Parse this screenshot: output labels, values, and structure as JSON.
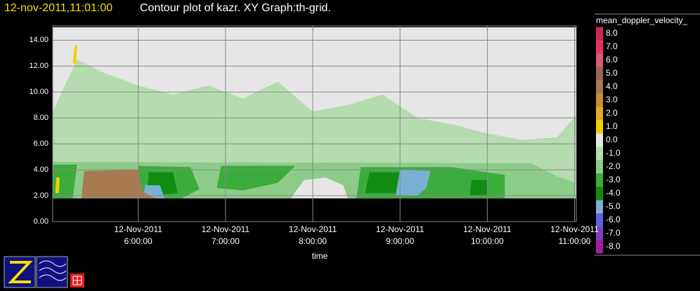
{
  "chart_data": {
    "type": "contour",
    "title_time": "12-nov-2011,11:01:00",
    "title": "Contour plot of kazr.  XY Graph:th-grid.",
    "xlabel": "time",
    "colorbar_label": "mean_doppler_velocity_",
    "xlim": [
      5.02,
      11.02
    ],
    "ylim": [
      0,
      15.1
    ],
    "xticks": [
      {
        "value": 6,
        "label": "12-Nov-2011\n6:00:00"
      },
      {
        "value": 7,
        "label": "12-Nov-2011\n7:00:00"
      },
      {
        "value": 8,
        "label": "12-Nov-2011\n8:00:00"
      },
      {
        "value": 9,
        "label": "12-Nov-2011\n9:00:00"
      },
      {
        "value": 10,
        "label": "12-Nov-2011\n10:00:00"
      },
      {
        "value": 11,
        "label": "12-Nov-2011\n11:00:00"
      }
    ],
    "yticks": [
      {
        "value": 0,
        "label": "0.00"
      },
      {
        "value": 2,
        "label": "2.00"
      },
      {
        "value": 4,
        "label": "4.00"
      },
      {
        "value": 6,
        "label": "6.00"
      },
      {
        "value": 8,
        "label": "8.00"
      },
      {
        "value": 10,
        "label": "10.00"
      },
      {
        "value": 12,
        "label": "12.00"
      },
      {
        "value": 14,
        "label": "14.00"
      }
    ],
    "grid": true,
    "levels": [
      {
        "value": 8,
        "label": "8.0",
        "color": "#c8284f"
      },
      {
        "value": 7,
        "label": "7.0",
        "color": "#e83068"
      },
      {
        "value": 6,
        "label": "6.0",
        "color": "#d85a7a"
      },
      {
        "value": 5,
        "label": "5.0",
        "color": "#9c6450"
      },
      {
        "value": 4,
        "label": "4.0",
        "color": "#a87a50"
      },
      {
        "value": 3,
        "label": "3.0",
        "color": "#cc8c30"
      },
      {
        "value": 2,
        "label": "2.0",
        "color": "#e8a820"
      },
      {
        "value": 1,
        "label": "1.0",
        "color": "#f0d000"
      },
      {
        "value": 0,
        "label": "0.0",
        "color": "#e6e6e6"
      },
      {
        "value": -1,
        "label": "-1.0",
        "color": "#b4dcae"
      },
      {
        "value": -2,
        "label": "-2.0",
        "color": "#8ccc88"
      },
      {
        "value": -3,
        "label": "-3.0",
        "color": "#3cac3c"
      },
      {
        "value": -4,
        "label": "-4.0",
        "color": "#108c10"
      },
      {
        "value": -5,
        "label": "-5.0",
        "color": "#7ab0d4"
      },
      {
        "value": -6,
        "label": "-6.0",
        "color": "#6060e0"
      },
      {
        "value": -7,
        "label": "-7.0",
        "color": "#8040c0"
      },
      {
        "value": -8,
        "label": "-8.0",
        "color": "#a020a0"
      }
    ],
    "regions": [
      {
        "value": 0,
        "x": [
          5.02,
          11.02,
          11.02,
          5.02
        ],
        "y": [
          1.8,
          1.8,
          15,
          15
        ]
      },
      {
        "value": -1,
        "x": [
          5.02,
          5.3,
          5.6,
          6.0,
          6.4,
          6.8,
          7.2,
          7.6,
          8.0,
          8.4,
          8.8,
          9.2,
          9.6,
          10.0,
          10.4,
          10.8,
          11.02,
          11.02,
          5.02
        ],
        "y": [
          8.5,
          12.5,
          11.5,
          10.5,
          9.8,
          10.5,
          9.5,
          10.8,
          8.5,
          9,
          9.8,
          8,
          7.5,
          6.8,
          6.3,
          6.5,
          8.2,
          1.8,
          1.8
        ]
      },
      {
        "value": -2,
        "x": [
          5.02,
          5.02,
          10.5,
          10.8,
          11.0,
          11.0
        ],
        "y": [
          1.8,
          4.6,
          4.5,
          3.5,
          3.0,
          1.8
        ]
      },
      {
        "value": 0,
        "x": [
          7.75,
          7.9,
          8.15,
          8.35,
          8.4
        ],
        "y": [
          1.8,
          3.2,
          3.4,
          2.8,
          1.8
        ]
      },
      {
        "value": -3,
        "x": [
          5.02,
          5.02,
          5.3,
          5.25
        ],
        "y": [
          1.8,
          4.4,
          4.4,
          1.8
        ]
      },
      {
        "value": -3,
        "x": [
          6.0,
          6.0,
          6.6,
          6.7,
          6.5
        ],
        "y": [
          1.8,
          4.3,
          4.2,
          2.5,
          1.8
        ]
      },
      {
        "value": -3,
        "x": [
          6.9,
          6.95,
          7.8,
          7.6,
          7.2
        ],
        "y": [
          2.6,
          4.3,
          4.3,
          3.0,
          2.4
        ]
      },
      {
        "value": -3,
        "x": [
          8.5,
          8.55,
          9.6,
          10.2,
          10.2,
          9.5
        ],
        "y": [
          1.8,
          4.2,
          4.2,
          3.6,
          1.8,
          1.8
        ]
      },
      {
        "value": -4,
        "x": [
          6.1,
          6.12,
          6.4,
          6.45
        ],
        "y": [
          2.0,
          3.8,
          3.8,
          2.2
        ]
      },
      {
        "value": -4,
        "x": [
          8.6,
          8.65,
          9.2,
          9.1
        ],
        "y": [
          2.2,
          3.8,
          3.8,
          2.2
        ]
      },
      {
        "value": -4,
        "x": [
          9.8,
          9.82,
          10.0,
          10.0
        ],
        "y": [
          2.0,
          3.2,
          3.2,
          2.0
        ]
      },
      {
        "value": -5,
        "x": [
          6.05,
          6.08,
          6.25,
          6.3
        ],
        "y": [
          1.8,
          2.8,
          2.8,
          1.8
        ]
      },
      {
        "value": -5,
        "x": [
          8.95,
          9.0,
          9.35,
          9.3,
          9.2
        ],
        "y": [
          2.0,
          4.0,
          3.9,
          2.6,
          2.0
        ]
      },
      {
        "value": 4,
        "x": [
          5.35,
          5.38,
          6.0,
          6.05,
          6.2
        ],
        "y": [
          1.8,
          3.9,
          4.0,
          2.3,
          1.8
        ]
      },
      {
        "value": 1,
        "x": [
          5.25,
          5.27,
          5.3,
          5.29
        ],
        "y": [
          12.2,
          13.6,
          13.6,
          12.2
        ]
      },
      {
        "value": 1,
        "x": [
          5.05,
          5.06,
          5.1,
          5.09
        ],
        "y": [
          2.2,
          3.4,
          3.4,
          2.2
        ]
      }
    ]
  }
}
